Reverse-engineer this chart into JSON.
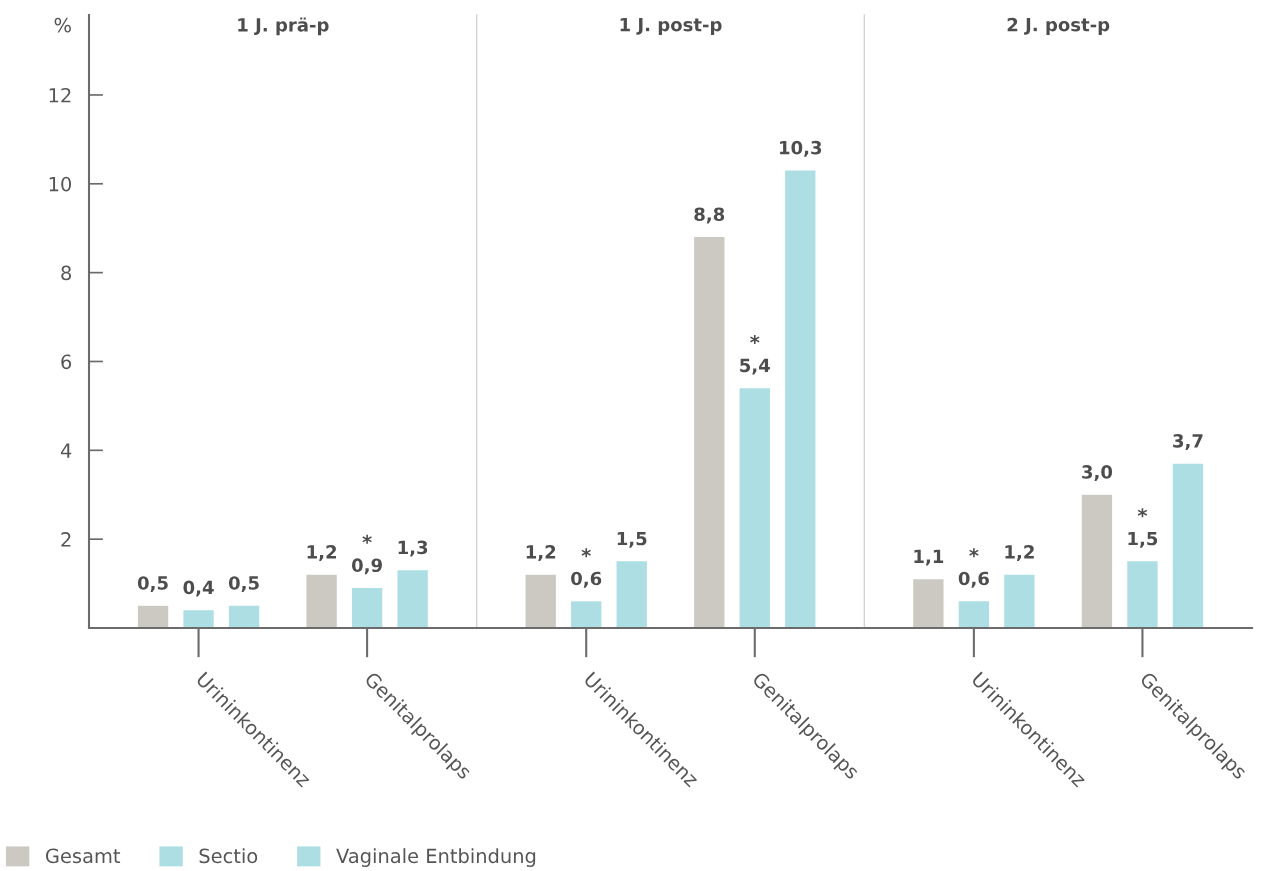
{
  "chart_data": [
    {
      "type": "bar",
      "title": "1 J. prä-p",
      "ylabel": "%",
      "categories": [
        "Urininkontinenz",
        "Genitalprolaps"
      ],
      "series": [
        {
          "name": "Gesamt",
          "color": "#ccc9c3",
          "values": [
            0.5,
            1.2
          ],
          "value_labels": [
            "0,5",
            "1,2"
          ]
        },
        {
          "name": "Sectio",
          "color": "#addee3",
          "values": [
            0.4,
            0.9
          ],
          "value_labels": [
            "0,4",
            "0,9"
          ]
        },
        {
          "name": "Vaginale Entbindung",
          "color": "#addee3",
          "values": [
            0.5,
            1.3
          ],
          "value_labels": [
            "0,5",
            "1,3"
          ]
        }
      ],
      "ylim": [
        0,
        13.8
      ],
      "yticks": [
        2,
        4,
        6,
        8,
        10,
        12
      ],
      "annotations": [
        {
          "text": "*",
          "x": "Genitalprolaps",
          "y": 0.9
        }
      ],
      "legend": "bottom"
    },
    {
      "type": "bar",
      "title": "1 J. post-p",
      "categories": [
        "Urininkontinenz",
        "Genitalprolaps"
      ],
      "series": [
        {
          "color": "#ccc9c3",
          "values": [
            1.2,
            8.8
          ],
          "value_labels": [
            "1,2",
            "8,8"
          ]
        },
        {
          "color": "#addee3",
          "values": [
            0.6,
            5.4
          ],
          "value_labels": [
            "0,6",
            "5,4"
          ]
        },
        {
          "color": "#addee3",
          "values": [
            1.5,
            10.3
          ],
          "value_labels": [
            "1,5",
            "10,3"
          ]
        }
      ],
      "ylim": [
        0,
        13.8
      ],
      "tick_labels": "x",
      "annotations": [
        {
          "text": "*",
          "x": "Urininkontinenz",
          "y": 0.6
        },
        {
          "text": "*",
          "x": "Genitalprolaps",
          "y": 5.4
        }
      ]
    },
    {
      "type": "bar",
      "title": "2 J. post-p",
      "categories": [
        "Urininkontinenz",
        "Genitalprolaps"
      ],
      "series": [
        {
          "color": "#ccc9c3",
          "values": [
            1.1,
            3.0
          ],
          "value_labels": [
            "1,1",
            "3,0"
          ]
        },
        {
          "color": "#addee3",
          "values": [
            0.6,
            1.5
          ],
          "value_labels": [
            "0,6",
            "1,5"
          ]
        },
        {
          "color": "#addee3",
          "values": [
            1.2,
            3.7
          ],
          "value_labels": [
            "1,2",
            "3,7"
          ]
        }
      ],
      "ylim": [
        0,
        13.8
      ],
      "tick_labels": "x",
      "annotations": [
        {
          "text": "*",
          "x": "Urininkontinenz",
          "y": 0.6
        },
        {
          "text": "*",
          "x": "Genitalprolaps",
          "y": 1.5
        }
      ]
    }
  ]
}
